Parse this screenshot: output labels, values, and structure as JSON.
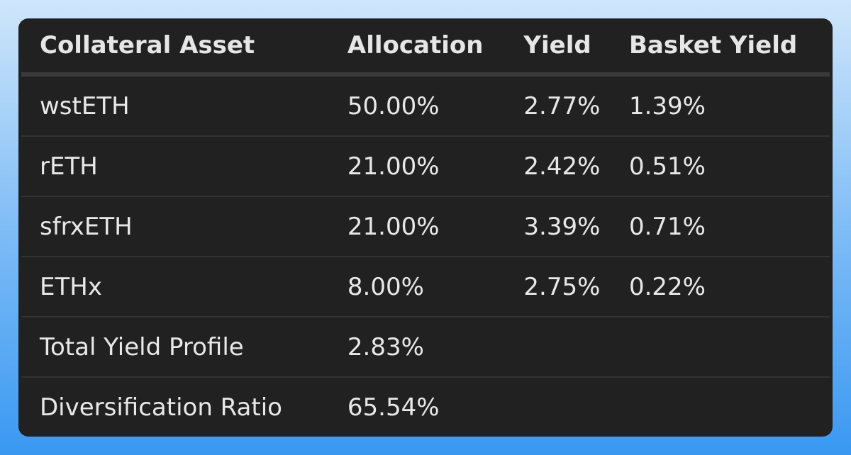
{
  "table": {
    "header": [
      "Collateral Asset",
      "Allocation",
      "Yield",
      "Basket Yield"
    ],
    "rows": [
      [
        "wstETH",
        "50.00%",
        "2.77%",
        "1.39%"
      ],
      [
        "rETH",
        "21.00%",
        "2.42%",
        "0.51%"
      ],
      [
        "sfrxETH",
        "21.00%",
        "3.39%",
        "0.71%"
      ],
      [
        "ETHx",
        "8.00%",
        "2.75%",
        "0.22%"
      ],
      [
        "Total Yield Profile",
        "2.83%",
        "",
        ""
      ],
      [
        "Diversification Ratio",
        "65.54%",
        "",
        ""
      ]
    ]
  }
}
